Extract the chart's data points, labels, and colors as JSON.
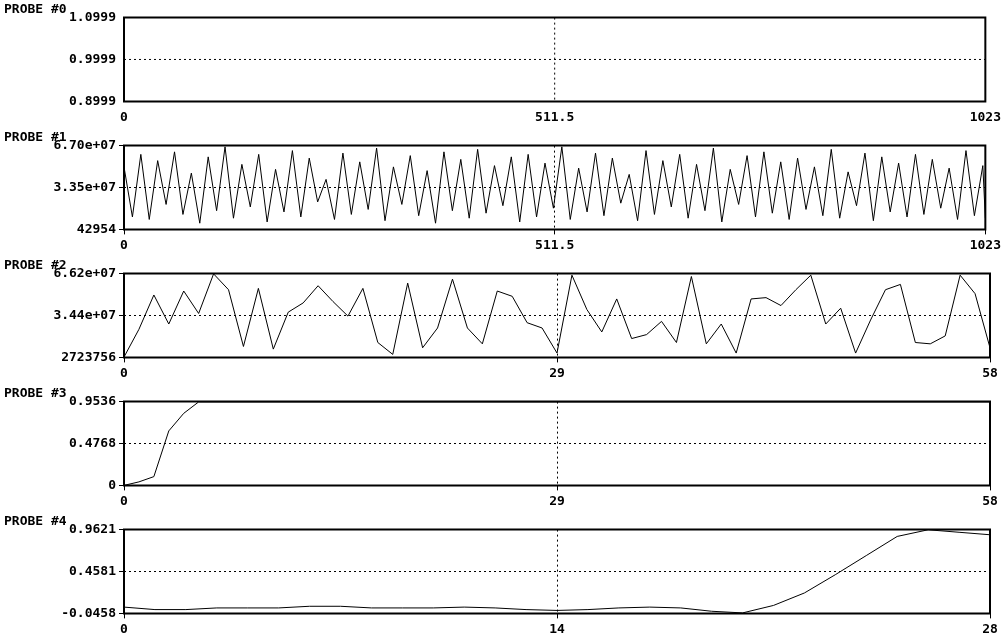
{
  "chart_data": [
    {
      "type": "line",
      "title": "PROBE #0",
      "color": "#000000",
      "marker": "none",
      "line_style": "dotted",
      "ref_lines": [
        {
          "axis": "x",
          "value": 511.5,
          "color": "#000000",
          "line_style": "dotted"
        }
      ],
      "x": [
        0,
        1023
      ],
      "values": [
        1.0,
        1.0
      ],
      "xlim": [
        0,
        1023
      ],
      "xticks": [
        0,
        511.5,
        1023
      ],
      "ylim": [
        0.8999,
        1.0999
      ],
      "yticks": [
        0.8999,
        0.9999,
        1.0999
      ]
    },
    {
      "type": "line",
      "title": "PROBE #1",
      "color": "#000000",
      "marker": "none",
      "grid": true,
      "x": [
        0,
        10,
        20,
        30,
        40,
        50,
        60,
        70,
        80,
        90,
        100,
        110,
        120,
        130,
        140,
        150,
        160,
        170,
        180,
        190,
        200,
        210,
        220,
        230,
        240,
        250,
        260,
        270,
        280,
        290,
        300,
        310,
        320,
        330,
        340,
        350,
        360,
        370,
        380,
        390,
        400,
        410,
        420,
        430,
        440,
        450,
        460,
        470,
        480,
        490,
        500,
        510,
        520,
        530,
        540,
        550,
        560,
        570,
        580,
        590,
        600,
        610,
        620,
        630,
        640,
        650,
        660,
        670,
        680,
        690,
        700,
        710,
        720,
        730,
        740,
        750,
        760,
        770,
        780,
        790,
        800,
        810,
        820,
        830,
        840,
        850,
        860,
        870,
        880,
        890,
        900,
        910,
        920,
        930,
        940,
        950,
        960,
        970,
        980,
        990,
        1000,
        1010,
        1020,
        1023
      ],
      "values": [
        50000000,
        10000000,
        60000000,
        8000000,
        55000000,
        20000000,
        62000000,
        12000000,
        45000000,
        5000000,
        58000000,
        15000000,
        66000000,
        9000000,
        52000000,
        18000000,
        60000000,
        6000000,
        48000000,
        14000000,
        63000000,
        10000000,
        57000000,
        22000000,
        40000000,
        8000000,
        61000000,
        12000000,
        54000000,
        16000000,
        65000000,
        7000000,
        50000000,
        20000000,
        59000000,
        11000000,
        47000000,
        5000000,
        62000000,
        15000000,
        56000000,
        9000000,
        64000000,
        13000000,
        51000000,
        19000000,
        58000000,
        6000000,
        60000000,
        10000000,
        53000000,
        17000000,
        66000000,
        8000000,
        49000000,
        14000000,
        61000000,
        11000000,
        57000000,
        21000000,
        44000000,
        7000000,
        63000000,
        12000000,
        55000000,
        18000000,
        60000000,
        9000000,
        52000000,
        15000000,
        65000000,
        6000000,
        48000000,
        20000000,
        59000000,
        10000000,
        62000000,
        13000000,
        54000000,
        8000000,
        57000000,
        16000000,
        50000000,
        11000000,
        64000000,
        9000000,
        46000000,
        19000000,
        61000000,
        7000000,
        58000000,
        14000000,
        53000000,
        10000000,
        60000000,
        12000000,
        56000000,
        17000000,
        49000000,
        8000000,
        63000000,
        11000000,
        51000000,
        9000000
      ],
      "xlim": [
        0,
        1023
      ],
      "xticks": [
        0,
        511.5,
        1023
      ],
      "ylim": [
        42954,
        67000000
      ],
      "yticks": [
        42954,
        {
          "value": 33521477,
          "label": "3.35e+07"
        },
        {
          "value": 67000000,
          "label": "6.70e+07"
        }
      ]
    },
    {
      "type": "line",
      "title": "PROBE #2",
      "color": "#000000",
      "marker": "none",
      "grid": true,
      "x": [
        0,
        1,
        2,
        3,
        4,
        5,
        6,
        7,
        8,
        9,
        10,
        11,
        12,
        13,
        14,
        15,
        16,
        17,
        18,
        19,
        20,
        21,
        22,
        23,
        24,
        25,
        26,
        27,
        28,
        29,
        30,
        31,
        32,
        33,
        34,
        35,
        36,
        37,
        38,
        39,
        40,
        41,
        42,
        43,
        44,
        45,
        46,
        47,
        48,
        49,
        50,
        51,
        52,
        53,
        54,
        55,
        56,
        57,
        58
      ],
      "values": [
        3000000,
        24000000,
        50000000,
        28000000,
        53000000,
        36000000,
        66000000,
        54000000,
        11000000,
        55000000,
        9000000,
        37000000,
        44000000,
        57000000,
        45000000,
        34000000,
        55000000,
        14000000,
        5000000,
        59000000,
        10000000,
        25000000,
        62000000,
        25000000,
        13000000,
        53000000,
        49000000,
        29000000,
        25000000,
        6000000,
        65000000,
        39000000,
        22000000,
        47000000,
        17000000,
        20000000,
        30000000,
        14000000,
        64000000,
        13000000,
        28000000,
        6000000,
        47000000,
        48000000,
        42000000,
        54000000,
        65000000,
        28000000,
        40000000,
        6000000,
        31000000,
        54000000,
        58000000,
        14000000,
        13000000,
        19000000,
        65000000,
        51000000,
        10000000
      ],
      "xlim": [
        0,
        58
      ],
      "xticks": [
        0,
        29,
        58
      ],
      "ylim": [
        2723756,
        66200000
      ],
      "yticks": [
        2723756,
        {
          "value": 34400000,
          "label": "3.44e+07"
        },
        {
          "value": 66200000,
          "label": "6.62e+07"
        }
      ]
    },
    {
      "type": "line",
      "title": "PROBE #3",
      "color": "#000000",
      "marker": "none",
      "grid": true,
      "x": [
        0,
        1,
        2,
        3,
        4,
        5,
        58
      ],
      "values": [
        0,
        0.04,
        0.1,
        0.62,
        0.82,
        0.95,
        0.95
      ],
      "xlim": [
        0,
        58
      ],
      "xticks": [
        0,
        29,
        58
      ],
      "ylim": [
        0,
        0.9536
      ],
      "yticks": [
        0,
        0.4768,
        0.9536
      ]
    },
    {
      "type": "line",
      "title": "PROBE #4",
      "color": "#000000",
      "marker": "none",
      "grid": true,
      "x": [
        0,
        1,
        2,
        3,
        4,
        5,
        6,
        7,
        8,
        9,
        10,
        11,
        12,
        13,
        14,
        15,
        16,
        17,
        18,
        19,
        20,
        21,
        22,
        23,
        24,
        25,
        26,
        27,
        28
      ],
      "values": [
        0.03,
        0.0,
        0.0,
        0.02,
        0.02,
        0.02,
        0.04,
        0.04,
        0.02,
        0.02,
        0.02,
        0.03,
        0.02,
        0.0,
        -0.01,
        0.0,
        0.02,
        0.03,
        0.02,
        -0.02,
        -0.04,
        0.05,
        0.2,
        0.42,
        0.65,
        0.88,
        0.96,
        0.93,
        0.9
      ],
      "xlim": [
        0,
        28
      ],
      "xticks": [
        0,
        14,
        28
      ],
      "ylim": [
        -0.0458,
        0.9621
      ],
      "yticks": [
        -0.0458,
        0.4581,
        0.9621
      ]
    }
  ]
}
